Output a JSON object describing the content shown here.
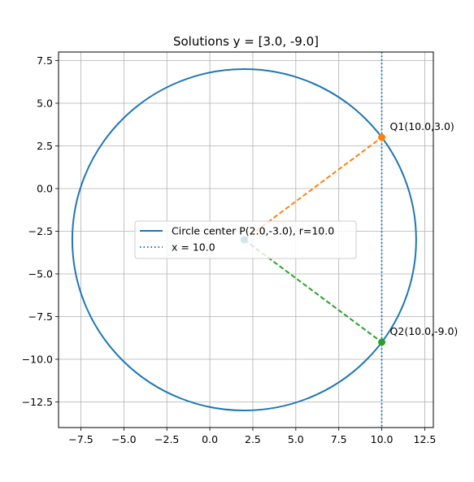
{
  "chart_data": {
    "type": "line",
    "title": "Solutions y = [3.0, -9.0]",
    "xlabel": "",
    "ylabel": "",
    "xlim": [
      -8.8,
      13.0
    ],
    "ylim": [
      -14.0,
      8.0
    ],
    "x_ticks": [
      -7.5,
      -5.0,
      -2.5,
      0.0,
      2.5,
      5.0,
      7.5,
      10.0,
      12.5
    ],
    "x_tick_labels": [
      "−7.5",
      "−5.0",
      "−2.5",
      "0.0",
      "2.5",
      "5.0",
      "7.5",
      "10.0",
      "12.5"
    ],
    "y_ticks": [
      7.5,
      5.0,
      2.5,
      0.0,
      -2.5,
      -5.0,
      -7.5,
      -10.0,
      -12.5
    ],
    "y_tick_labels": [
      "7.5",
      "5.0",
      "2.5",
      "0.0",
      "−2.5",
      "−5.0",
      "−7.5",
      "−10.0",
      "−12.5"
    ],
    "grid": true,
    "legend": {
      "placement": "center-left"
    },
    "circle": {
      "label": "Circle center P(2.0,-3.0), r=10.0",
      "center": [
        2.0,
        -3.0
      ],
      "radius": 10.0,
      "color": "#1f77b4"
    },
    "vertical_line": {
      "label": "x = 10.0",
      "x": 10.0,
      "color": "#1f77b4"
    },
    "center_point": {
      "x": 2.0,
      "y": -3.0,
      "color": "#1f77b4"
    },
    "solutions": [
      {
        "label": "Q1(10.0,3.0)",
        "x": 10.0,
        "y": 3.0,
        "color": "#ff7f0e"
      },
      {
        "label": "Q2(10.0,-9.0)",
        "x": 10.0,
        "y": -9.0,
        "color": "#2ca02c"
      }
    ]
  }
}
